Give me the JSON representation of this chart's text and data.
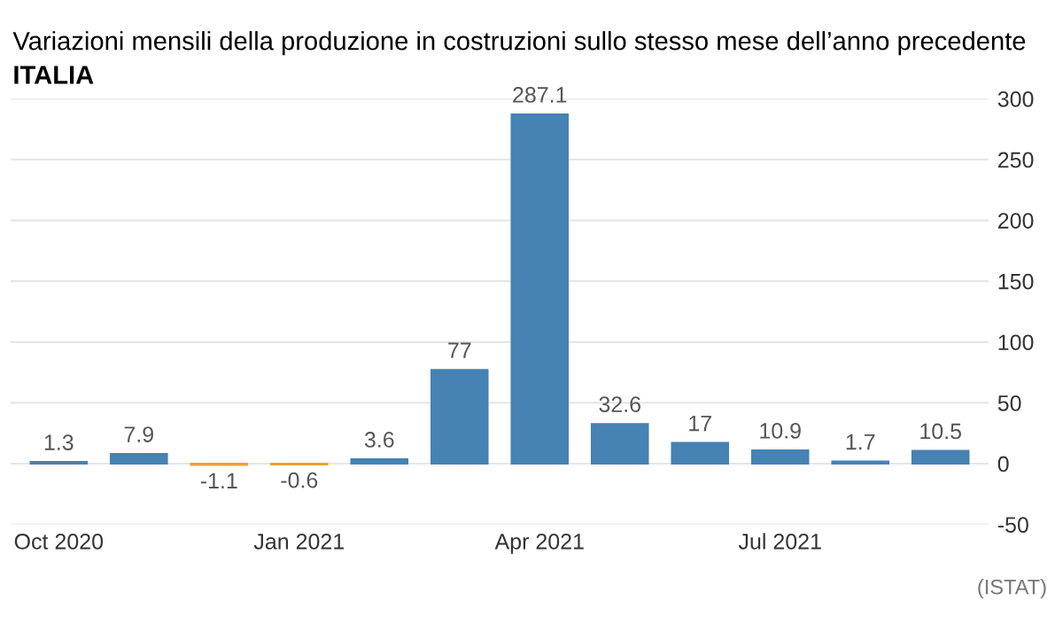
{
  "chart_data": {
    "type": "bar",
    "title": "Variazioni mensili della produzione in costruzioni sullo stesso mese dell’anno precedente",
    "subtitle": "ITALIA",
    "categories": [
      "Oct 2020",
      null,
      null,
      "Jan 2021",
      null,
      null,
      "Apr 2021",
      null,
      null,
      "Jul 2021",
      null,
      null
    ],
    "values": [
      1.3,
      7.9,
      -1.1,
      -0.6,
      3.6,
      77,
      287.1,
      32.6,
      17,
      10.9,
      1.7,
      10.5
    ],
    "colors": [
      "#4682b4",
      "#4682b4",
      "#f0a030",
      "#f0a030",
      "#4682b4",
      "#4682b4",
      "#4682b4",
      "#4682b4",
      "#4682b4",
      "#4682b4",
      "#4682b4",
      "#4682b4"
    ],
    "ylim": [
      -50,
      300
    ],
    "yticks": [
      -50,
      0,
      50,
      100,
      150,
      200,
      250,
      300
    ],
    "grid": "y",
    "data_labels": true,
    "annotations": [
      "(ISTAT)"
    ]
  }
}
